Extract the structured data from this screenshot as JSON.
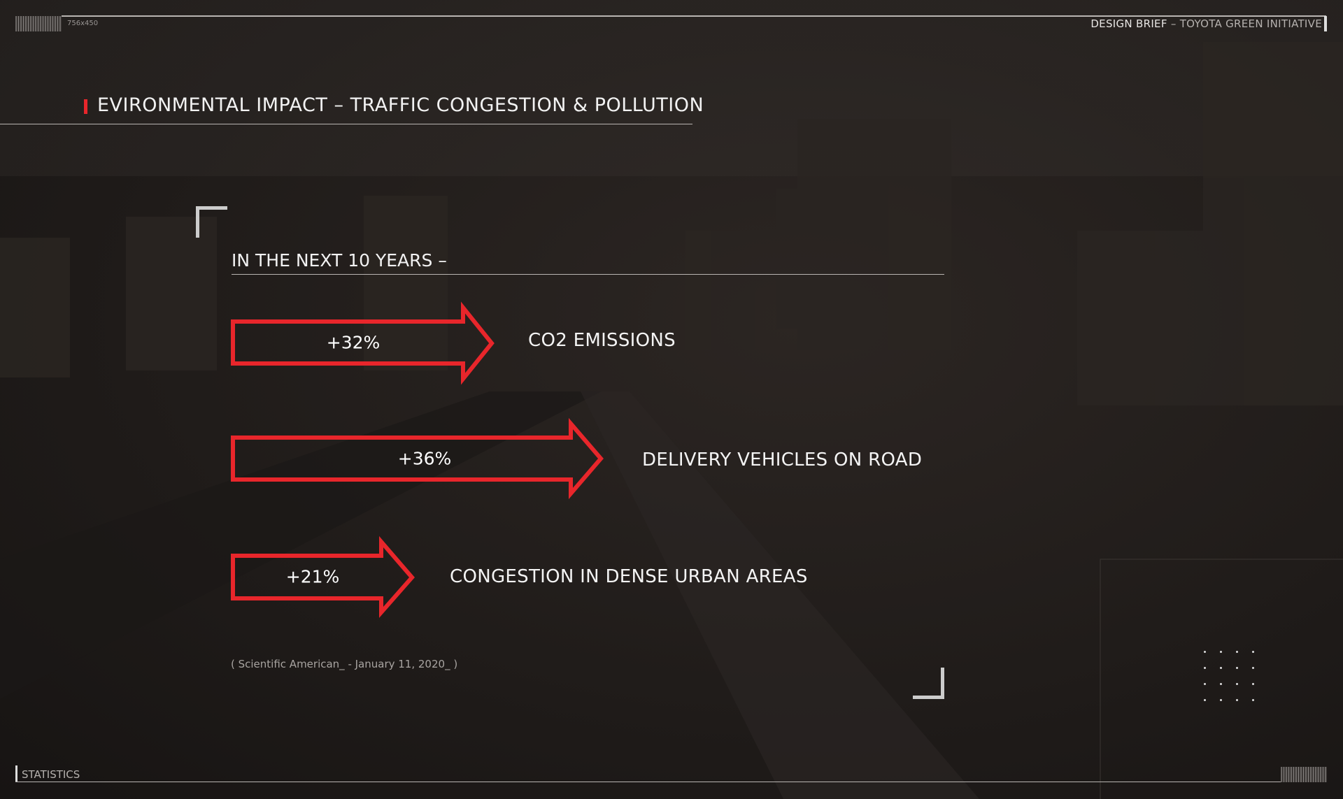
{
  "header": {
    "size_tag": "756x450",
    "brief_label": "DESIGN BRIEF",
    "brief_separator": " – ",
    "brief_project": "TOYOTA GREEN INITIATIVE"
  },
  "slide": {
    "title": "EVIRONMENTAL IMPACT – TRAFFIC CONGESTION & POLLUTION",
    "subtitle": "IN THE NEXT 10 YEARS –",
    "stats": [
      {
        "value": "+32%",
        "label": "CO2 EMISSIONS"
      },
      {
        "value": "+36%",
        "label": "DELIVERY VEHICLES ON ROAD"
      },
      {
        "value": "+21%",
        "label": "CONGESTION IN DENSE URBAN AREAS"
      }
    ],
    "source": "( Scientific American_ - January 11, 2020_ )"
  },
  "footer": {
    "section": "STATISTICS"
  },
  "colors": {
    "accent": "#e8262b",
    "background": "#221e1c",
    "text": "#ffffff"
  }
}
